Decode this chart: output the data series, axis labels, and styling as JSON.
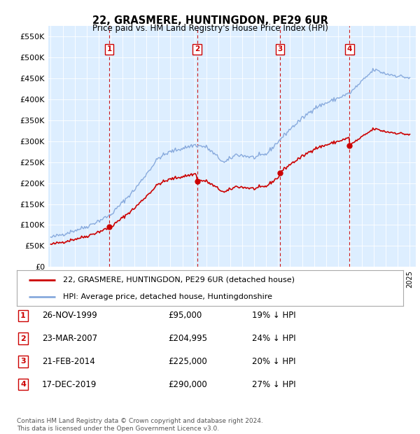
{
  "title": "22, GRASMERE, HUNTINGDON, PE29 6UR",
  "subtitle": "Price paid vs. HM Land Registry's House Price Index (HPI)",
  "ylabel_ticks": [
    "£0",
    "£50K",
    "£100K",
    "£150K",
    "£200K",
    "£250K",
    "£300K",
    "£350K",
    "£400K",
    "£450K",
    "£500K",
    "£550K"
  ],
  "ytick_vals": [
    0,
    50000,
    100000,
    150000,
    200000,
    250000,
    300000,
    350000,
    400000,
    450000,
    500000,
    550000
  ],
  "ylim": [
    0,
    575000
  ],
  "fig_bg": "#ffffff",
  "plot_bg": "#ddeeff",
  "sale_dates_num": [
    1999.9,
    2007.23,
    2014.14,
    2019.96
  ],
  "sale_prices": [
    95000,
    204995,
    225000,
    290000
  ],
  "sale_labels": [
    "1",
    "2",
    "3",
    "4"
  ],
  "legend_house_label": "22, GRASMERE, HUNTINGDON, PE29 6UR (detached house)",
  "legend_hpi_label": "HPI: Average price, detached house, Huntingdonshire",
  "table_rows": [
    [
      "1",
      "26-NOV-1999",
      "£95,000",
      "19% ↓ HPI"
    ],
    [
      "2",
      "23-MAR-2007",
      "£204,995",
      "24% ↓ HPI"
    ],
    [
      "3",
      "21-FEB-2014",
      "£225,000",
      "20% ↓ HPI"
    ],
    [
      "4",
      "17-DEC-2019",
      "£290,000",
      "27% ↓ HPI"
    ]
  ],
  "footer": "Contains HM Land Registry data © Crown copyright and database right 2024.\nThis data is licensed under the Open Government Licence v3.0.",
  "house_line_color": "#cc0000",
  "hpi_line_color": "#88aadd",
  "vline_color": "#cc0000",
  "box_color": "#cc0000",
  "dot_color": "#cc0000"
}
